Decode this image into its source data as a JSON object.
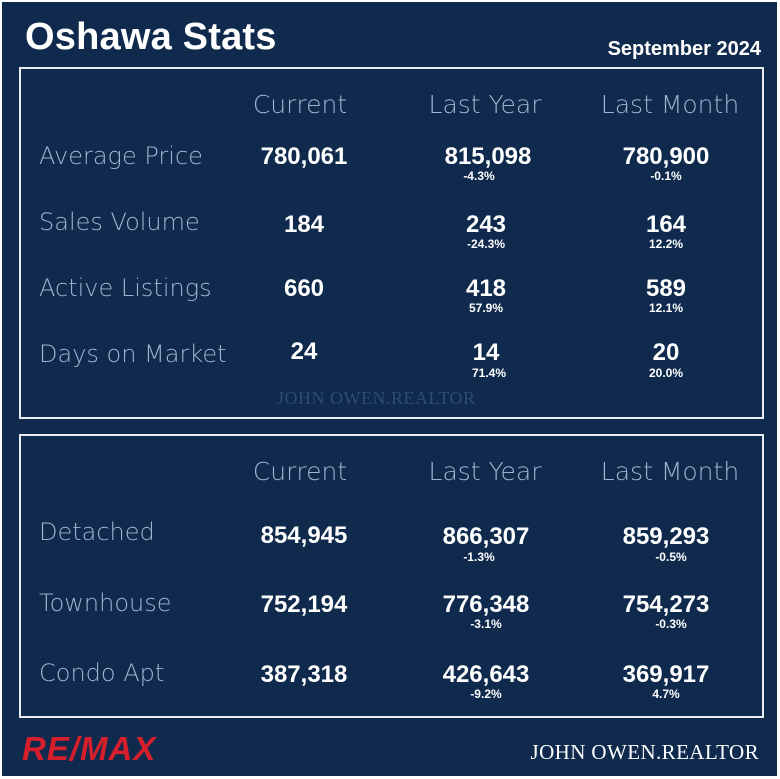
{
  "title": "Oshawa Stats",
  "date": "September 2024",
  "columns": [
    "Current",
    "Last Year",
    "Last Month"
  ],
  "summary": [
    {
      "label": "Average Price",
      "current": "780,061",
      "last_year": "815,098",
      "last_year_change": "-4.3%",
      "last_month": "780,900",
      "last_month_change": "-0.1%"
    },
    {
      "label": "Sales Volume",
      "current": "184",
      "last_year": "243",
      "last_year_change": "-24.3%",
      "last_month": "164",
      "last_month_change": "12.2%"
    },
    {
      "label": "Active Listings",
      "current": "660",
      "last_year": "418",
      "last_year_change": "57.9%",
      "last_month": "589",
      "last_month_change": "12.1%"
    },
    {
      "label": "Days on Market",
      "current": "24",
      "last_year": "14",
      "last_year_change": "71.4%",
      "last_month": "20",
      "last_month_change": "20.0%"
    }
  ],
  "by_type": [
    {
      "label": "Detached",
      "current": "854,945",
      "last_year": "866,307",
      "last_year_change": "-1.3%",
      "last_month": "859,293",
      "last_month_change": "-0.5%"
    },
    {
      "label": "Townhouse",
      "current": "752,194",
      "last_year": "776,348",
      "last_year_change": "-3.1%",
      "last_month": "754,273",
      "last_month_change": "-0.3%"
    },
    {
      "label": "Condo Apt",
      "current": "387,318",
      "last_year": "426,643",
      "last_year_change": "-9.2%",
      "last_month": "369,917",
      "last_month_change": "4.7%"
    }
  ],
  "watermark": "JOHN OWEN.REALTOR",
  "logo_text": "RE/MAX",
  "signature": "JOHN OWEN.REALTOR",
  "colors": {
    "background": "#0f2a4d",
    "accent": "#d61f2c",
    "label": "#9fb5cf"
  }
}
